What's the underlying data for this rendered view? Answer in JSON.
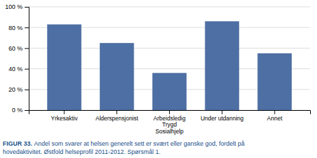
{
  "chart_data": {
    "type": "bar",
    "categories": [
      "Yrkesaktiv",
      "Alderspensjonist",
      "Arbeidsledig\nTrygd\nSosialhjelp",
      "Under utdanning",
      "Annet"
    ],
    "values": [
      83,
      65,
      36,
      86,
      55
    ],
    "color": "#4E6FA3",
    "ylim": [
      0,
      100
    ],
    "yticks": [
      {
        "value": 0,
        "label": "0 %"
      },
      {
        "value": 20,
        "label": "20 %"
      },
      {
        "value": 40,
        "label": "40 %"
      },
      {
        "value": 60,
        "label": "60 %"
      },
      {
        "value": 80,
        "label": "80 %"
      },
      {
        "value": 100,
        "label": "100 %"
      }
    ],
    "grid": true,
    "annotations": [
      "FIGUR 33.",
      "Andel som svarer at helsen generelt sett er svært eller ganske god, fordelt på",
      "hovedaktivitet. Østfold helseprofil 2011-2012. Spørsmål 1."
    ]
  }
}
